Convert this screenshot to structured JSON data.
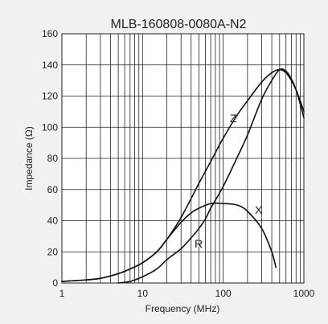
{
  "chart_data": {
    "type": "line",
    "title": "MLB-160808-0080A-N2",
    "xlabel": "Frequency (MHz)",
    "ylabel": "Impedance (Ω)",
    "xscale": "log",
    "xlim": [
      1,
      1000
    ],
    "ylim": [
      0,
      160
    ],
    "xticks": [
      "1",
      "10",
      "100",
      "1000"
    ],
    "yticks": [
      "0",
      "20",
      "40",
      "60",
      "80",
      "100",
      "120",
      "140",
      "160"
    ],
    "grid": true,
    "series": [
      {
        "name": "Z",
        "x": [
          1,
          2,
          3,
          5,
          7,
          10,
          15,
          20,
          30,
          50,
          70,
          100,
          150,
          200,
          300,
          400,
          500,
          600,
          700,
          800,
          900,
          1000
        ],
        "y": [
          1,
          2,
          3,
          6,
          9,
          13,
          20,
          28,
          42,
          64,
          78,
          93,
          108,
          117,
          129,
          135,
          137,
          135,
          130,
          124,
          117,
          110
        ]
      },
      {
        "name": "R",
        "x": [
          5,
          7,
          10,
          15,
          20,
          30,
          40,
          50,
          60,
          70,
          100,
          150,
          200,
          300,
          400,
          500,
          600,
          700,
          800,
          900,
          1000
        ],
        "y": [
          0,
          1,
          4,
          9,
          15,
          22,
          29,
          35,
          41,
          48,
          62,
          81,
          95,
          118,
          130,
          137,
          136,
          131,
          124,
          115,
          106
        ]
      },
      {
        "name": "X",
        "x": [
          1,
          2,
          3,
          5,
          7,
          10,
          15,
          20,
          30,
          40,
          50,
          70,
          100,
          150,
          200,
          300,
          400,
          450
        ],
        "y": [
          1,
          2,
          3,
          6,
          9,
          13,
          20,
          28,
          39,
          45,
          48,
          51,
          51,
          50,
          46,
          35,
          20,
          10
        ]
      }
    ]
  }
}
